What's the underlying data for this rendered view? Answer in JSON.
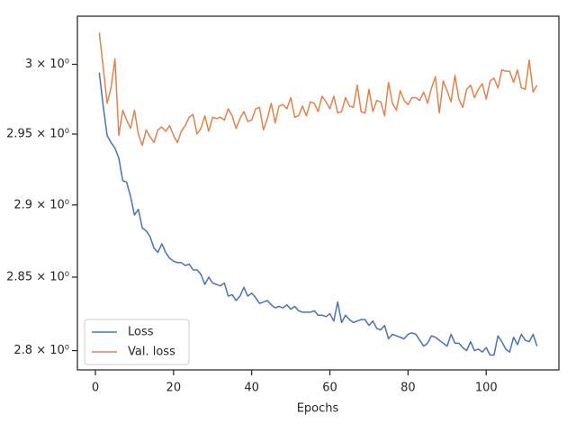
{
  "chart_data": {
    "type": "line",
    "xlabel": "Epochs",
    "x": [
      1,
      2,
      3,
      4,
      5,
      6,
      7,
      8,
      9,
      10,
      11,
      12,
      13,
      14,
      15,
      16,
      17,
      18,
      19,
      20,
      21,
      22,
      23,
      24,
      25,
      26,
      27,
      28,
      29,
      30,
      31,
      32,
      33,
      34,
      35,
      36,
      37,
      38,
      39,
      40,
      41,
      42,
      43,
      44,
      45,
      46,
      47,
      48,
      49,
      50,
      51,
      52,
      53,
      54,
      55,
      56,
      57,
      58,
      59,
      60,
      61,
      62,
      63,
      64,
      65,
      66,
      67,
      68,
      69,
      70,
      71,
      72,
      73,
      74,
      75,
      76,
      77,
      78,
      79,
      80,
      81,
      82,
      83,
      84,
      85,
      86,
      87,
      88,
      89,
      90,
      91,
      92,
      93,
      94,
      95,
      96,
      97,
      98,
      99,
      100,
      101,
      102,
      103,
      104,
      105,
      106,
      107,
      108,
      109,
      110,
      111,
      112,
      113
    ],
    "series": [
      {
        "name": "Loss",
        "color": "#4c72b0",
        "values": [
          2.994,
          2.97,
          2.949,
          2.944,
          2.94,
          2.933,
          2.917,
          2.916,
          2.906,
          2.893,
          2.897,
          2.884,
          2.882,
          2.878,
          2.87,
          2.867,
          2.873,
          2.867,
          2.863,
          2.861,
          2.86,
          2.86,
          2.858,
          2.859,
          2.855,
          2.855,
          2.852,
          2.845,
          2.85,
          2.846,
          2.845,
          2.844,
          2.846,
          2.837,
          2.838,
          2.834,
          2.837,
          2.843,
          2.837,
          2.839,
          2.836,
          2.832,
          2.833,
          2.834,
          2.831,
          2.829,
          2.83,
          2.829,
          2.831,
          2.828,
          2.83,
          2.827,
          2.826,
          2.826,
          2.826,
          2.827,
          2.824,
          2.824,
          2.823,
          2.825,
          2.82,
          2.833,
          2.819,
          2.824,
          2.821,
          2.819,
          2.82,
          2.821,
          2.821,
          2.817,
          2.82,
          2.815,
          2.814,
          2.817,
          2.808,
          2.811,
          2.81,
          2.809,
          2.808,
          2.811,
          2.812,
          2.811,
          2.807,
          2.803,
          2.805,
          2.81,
          2.809,
          2.807,
          2.805,
          2.803,
          2.811,
          2.805,
          2.805,
          2.802,
          2.8,
          2.806,
          2.8,
          2.801,
          2.799,
          2.802,
          2.797,
          2.797,
          2.81,
          2.806,
          2.801,
          2.799,
          2.809,
          2.804,
          2.811,
          2.807,
          2.806,
          2.811,
          2.803
        ]
      },
      {
        "name": "Val. loss",
        "color": "#dd8452",
        "values": [
          3.023,
          2.998,
          2.972,
          2.983,
          3.004,
          2.949,
          2.967,
          2.96,
          2.954,
          2.967,
          2.95,
          2.942,
          2.953,
          2.948,
          2.944,
          2.953,
          2.955,
          2.952,
          2.956,
          2.949,
          2.944,
          2.952,
          2.956,
          2.962,
          2.964,
          2.95,
          2.954,
          2.963,
          2.952,
          2.962,
          2.961,
          2.962,
          2.96,
          2.968,
          2.963,
          2.954,
          2.961,
          2.966,
          2.959,
          2.96,
          2.968,
          2.969,
          2.953,
          2.961,
          2.972,
          2.958,
          2.97,
          2.971,
          2.968,
          2.976,
          2.962,
          2.963,
          2.97,
          2.963,
          2.973,
          2.972,
          2.966,
          2.977,
          2.973,
          2.968,
          2.977,
          2.965,
          2.966,
          2.976,
          2.97,
          2.969,
          2.985,
          2.966,
          2.965,
          2.982,
          2.966,
          2.974,
          2.973,
          2.963,
          2.987,
          2.972,
          2.967,
          2.981,
          2.974,
          2.971,
          2.976,
          2.976,
          2.974,
          2.98,
          2.972,
          2.983,
          2.991,
          2.965,
          2.988,
          2.981,
          2.973,
          2.992,
          2.975,
          2.969,
          2.982,
          2.985,
          2.976,
          2.982,
          2.986,
          2.975,
          2.988,
          2.99,
          2.983,
          2.996,
          2.995,
          2.995,
          2.987,
          2.996,
          2.983,
          2.982,
          3.003,
          2.98,
          2.985
        ]
      }
    ],
    "xlim": [
      -4.6,
      118.6
    ],
    "xticks": [
      0,
      20,
      40,
      60,
      80,
      100
    ],
    "ylim": [
      2.787,
      3.035
    ],
    "yscale": "log",
    "yticks": [
      {
        "value": 2.8,
        "label": "2.8 × 10⁰"
      },
      {
        "value": 2.85,
        "label": "2.85 × 10⁰"
      },
      {
        "value": 2.9,
        "label": "2.9 × 10⁰"
      },
      {
        "value": 2.95,
        "label": "2.95 × 10⁰"
      },
      {
        "value": 3,
        "label": "3 × 10⁰"
      }
    ],
    "grid": false,
    "legend_loc": "lower left"
  }
}
